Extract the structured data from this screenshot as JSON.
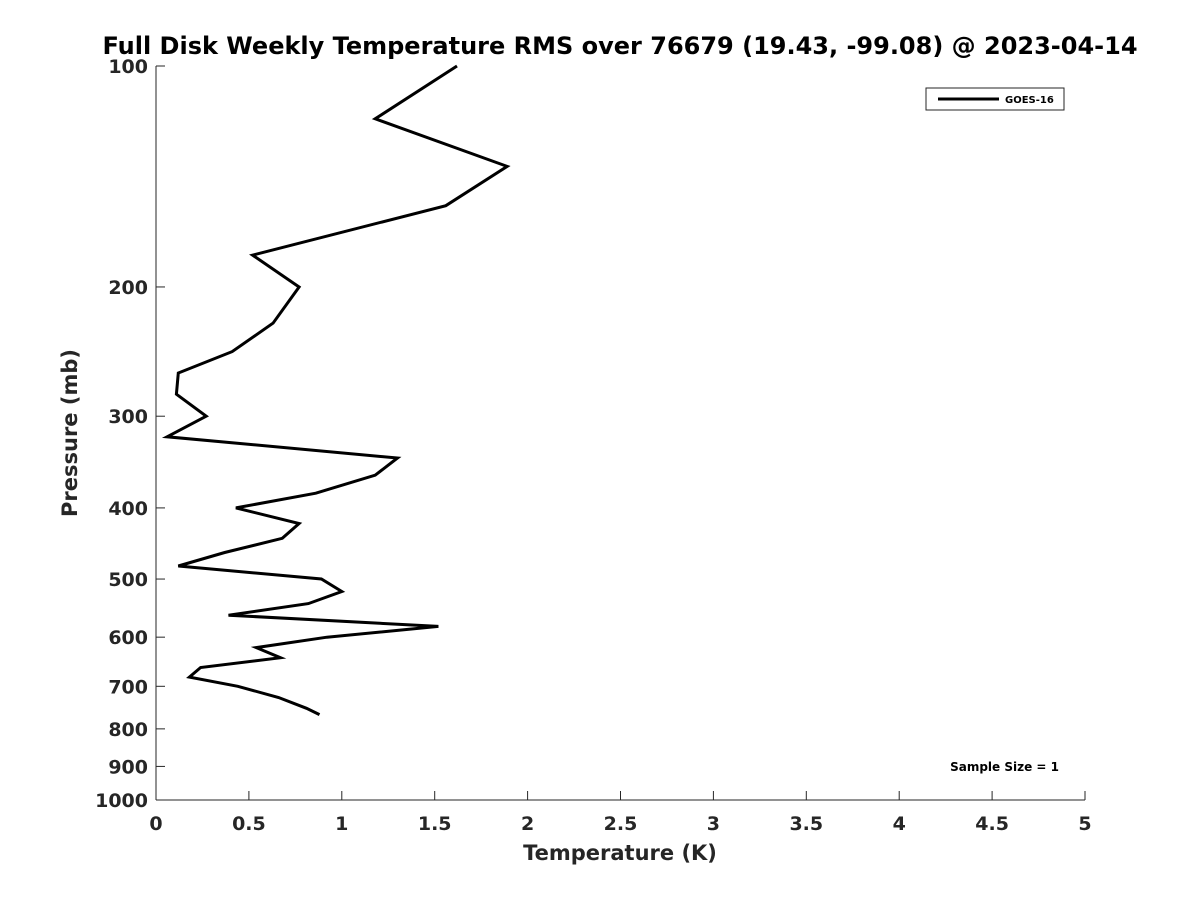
{
  "chart_data": {
    "type": "line",
    "title": "Full Disk Weekly Temperature RMS over 76679 (19.43, -99.08) @ 2023-04-14",
    "xlabel": "Temperature (K)",
    "ylabel": "Pressure (mb)",
    "xlim": [
      0,
      5
    ],
    "ylim": [
      100,
      1000
    ],
    "y_scale": "log",
    "y_reversed": true,
    "grid": false,
    "legend_position": "top-right",
    "x_ticks": [
      0,
      0.5,
      1,
      1.5,
      2,
      2.5,
      3,
      3.5,
      4,
      4.5,
      5
    ],
    "x_tick_labels": [
      "0",
      "0.5",
      "1",
      "1.5",
      "2",
      "2.5",
      "3",
      "3.5",
      "4",
      "4.5",
      "5"
    ],
    "y_ticks": [
      100,
      200,
      300,
      400,
      500,
      600,
      700,
      800,
      900,
      1000
    ],
    "y_tick_labels": [
      "100",
      "200",
      "300",
      "400",
      "500",
      "600",
      "700",
      "800",
      "900",
      "1000"
    ],
    "series": [
      {
        "name": "GOES-16",
        "color": "#000000",
        "points": [
          {
            "x": 1.62,
            "p": 100
          },
          {
            "x": 1.18,
            "p": 118
          },
          {
            "x": 1.89,
            "p": 137
          },
          {
            "x": 1.56,
            "p": 155
          },
          {
            "x": 0.52,
            "p": 181
          },
          {
            "x": 0.77,
            "p": 200
          },
          {
            "x": 0.63,
            "p": 224
          },
          {
            "x": 0.41,
            "p": 245
          },
          {
            "x": 0.12,
            "p": 262
          },
          {
            "x": 0.11,
            "p": 280
          },
          {
            "x": 0.27,
            "p": 300
          },
          {
            "x": 0.06,
            "p": 320
          },
          {
            "x": 1.3,
            "p": 342
          },
          {
            "x": 1.18,
            "p": 361
          },
          {
            "x": 0.86,
            "p": 382
          },
          {
            "x": 0.43,
            "p": 400
          },
          {
            "x": 0.77,
            "p": 420
          },
          {
            "x": 0.68,
            "p": 440
          },
          {
            "x": 0.37,
            "p": 460
          },
          {
            "x": 0.12,
            "p": 480
          },
          {
            "x": 0.89,
            "p": 500
          },
          {
            "x": 1.0,
            "p": 520
          },
          {
            "x": 0.82,
            "p": 540
          },
          {
            "x": 0.39,
            "p": 560
          },
          {
            "x": 1.52,
            "p": 580
          },
          {
            "x": 0.92,
            "p": 600
          },
          {
            "x": 0.54,
            "p": 620
          },
          {
            "x": 0.67,
            "p": 640
          },
          {
            "x": 0.24,
            "p": 660
          },
          {
            "x": 0.18,
            "p": 680
          },
          {
            "x": 0.44,
            "p": 700
          },
          {
            "x": 0.66,
            "p": 725
          },
          {
            "x": 0.81,
            "p": 750
          },
          {
            "x": 0.88,
            "p": 765
          }
        ]
      }
    ],
    "annotations": [
      {
        "text": "Sample Size = 1",
        "position": "bottom-right"
      }
    ]
  }
}
